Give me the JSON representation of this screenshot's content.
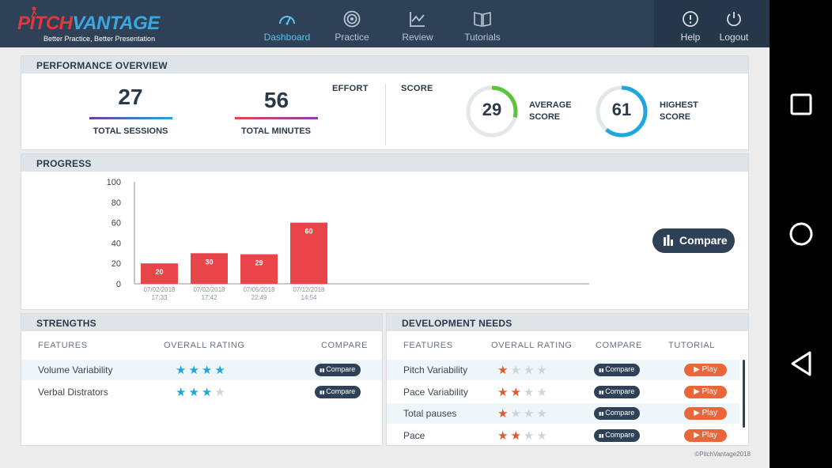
{
  "app": {
    "brand_part1": "PITCH",
    "brand_part2": "VANTAGE",
    "tagline": "Better Practice, Better Presentation",
    "copyright": "©PitchVantage2018"
  },
  "nav": {
    "items": [
      {
        "label": "Dashboard",
        "icon": "gauge-icon",
        "active": true
      },
      {
        "label": "Practice",
        "icon": "target-icon",
        "active": false
      },
      {
        "label": "Review",
        "icon": "line-chart-icon",
        "active": false
      },
      {
        "label": "Tutorials",
        "icon": "book-icon",
        "active": false
      }
    ],
    "help_label": "Help",
    "logout_label": "Logout"
  },
  "overview": {
    "title": "PERFORMANCE OVERVIEW",
    "effort_label": "EFFORT",
    "score_label": "SCORE",
    "total_sessions": "27",
    "total_sessions_label": "TOTAL SESSIONS",
    "total_minutes": "56",
    "total_minutes_label": "TOTAL MINUTES",
    "average_score": "29",
    "average_score_label_1": "AVERAGE",
    "average_score_label_2": "SCORE",
    "average_score_fraction": 0.29,
    "highest_score": "61",
    "highest_score_label_1": "HIGHEST",
    "highest_score_label_2": "SCORE",
    "highest_score_fraction": 0.61
  },
  "progress": {
    "title": "PROGRESS",
    "compare_label": "Compare"
  },
  "chart_data": {
    "type": "bar",
    "title": "PROGRESS",
    "xlabel": "",
    "ylabel": "",
    "ylim": [
      0,
      100
    ],
    "yticks": [
      0,
      20,
      40,
      60,
      80,
      100
    ],
    "categories": [
      [
        "07/02/2018",
        "17:33"
      ],
      [
        "07/02/2018",
        "17:42"
      ],
      [
        "07/05/2018",
        "22:49"
      ],
      [
        "07/12/2018",
        "14:54"
      ]
    ],
    "values": [
      20,
      30,
      29,
      60
    ],
    "bar_color": "#e8444a"
  },
  "strengths": {
    "title": "STRENGTHS",
    "headers": [
      "FEATURES",
      "OVERALL RATING",
      "COMPARE"
    ],
    "rows": [
      {
        "feature": "Volume Variability",
        "rating": 4,
        "max": 4,
        "compare": "Compare"
      },
      {
        "feature": "Verbal Distrators",
        "rating": 3,
        "max": 4,
        "compare": "Compare"
      }
    ]
  },
  "development": {
    "title": "DEVELOPMENT NEEDS",
    "headers": [
      "FEATURES",
      "OVERALL RATING",
      "COMPARE",
      "TUTORIAL"
    ],
    "rows": [
      {
        "feature": "Pitch Variability",
        "rating": 1,
        "max": 4,
        "compare": "Compare",
        "tutorial": "Play"
      },
      {
        "feature": "Pace Variability",
        "rating": 2,
        "max": 4,
        "compare": "Compare",
        "tutorial": "Play"
      },
      {
        "feature": "Total pauses",
        "rating": 1,
        "max": 4,
        "compare": "Compare",
        "tutorial": "Play"
      },
      {
        "feature": "Pace",
        "rating": 2,
        "max": 4,
        "compare": "Compare",
        "tutorial": "Play"
      }
    ]
  },
  "colors": {
    "topbar": "#2f4157",
    "accent_blue": "#1ea7de",
    "accent_green": "#5cc33c",
    "accent_red": "#e8444a",
    "play_orange": "#e8663a"
  }
}
